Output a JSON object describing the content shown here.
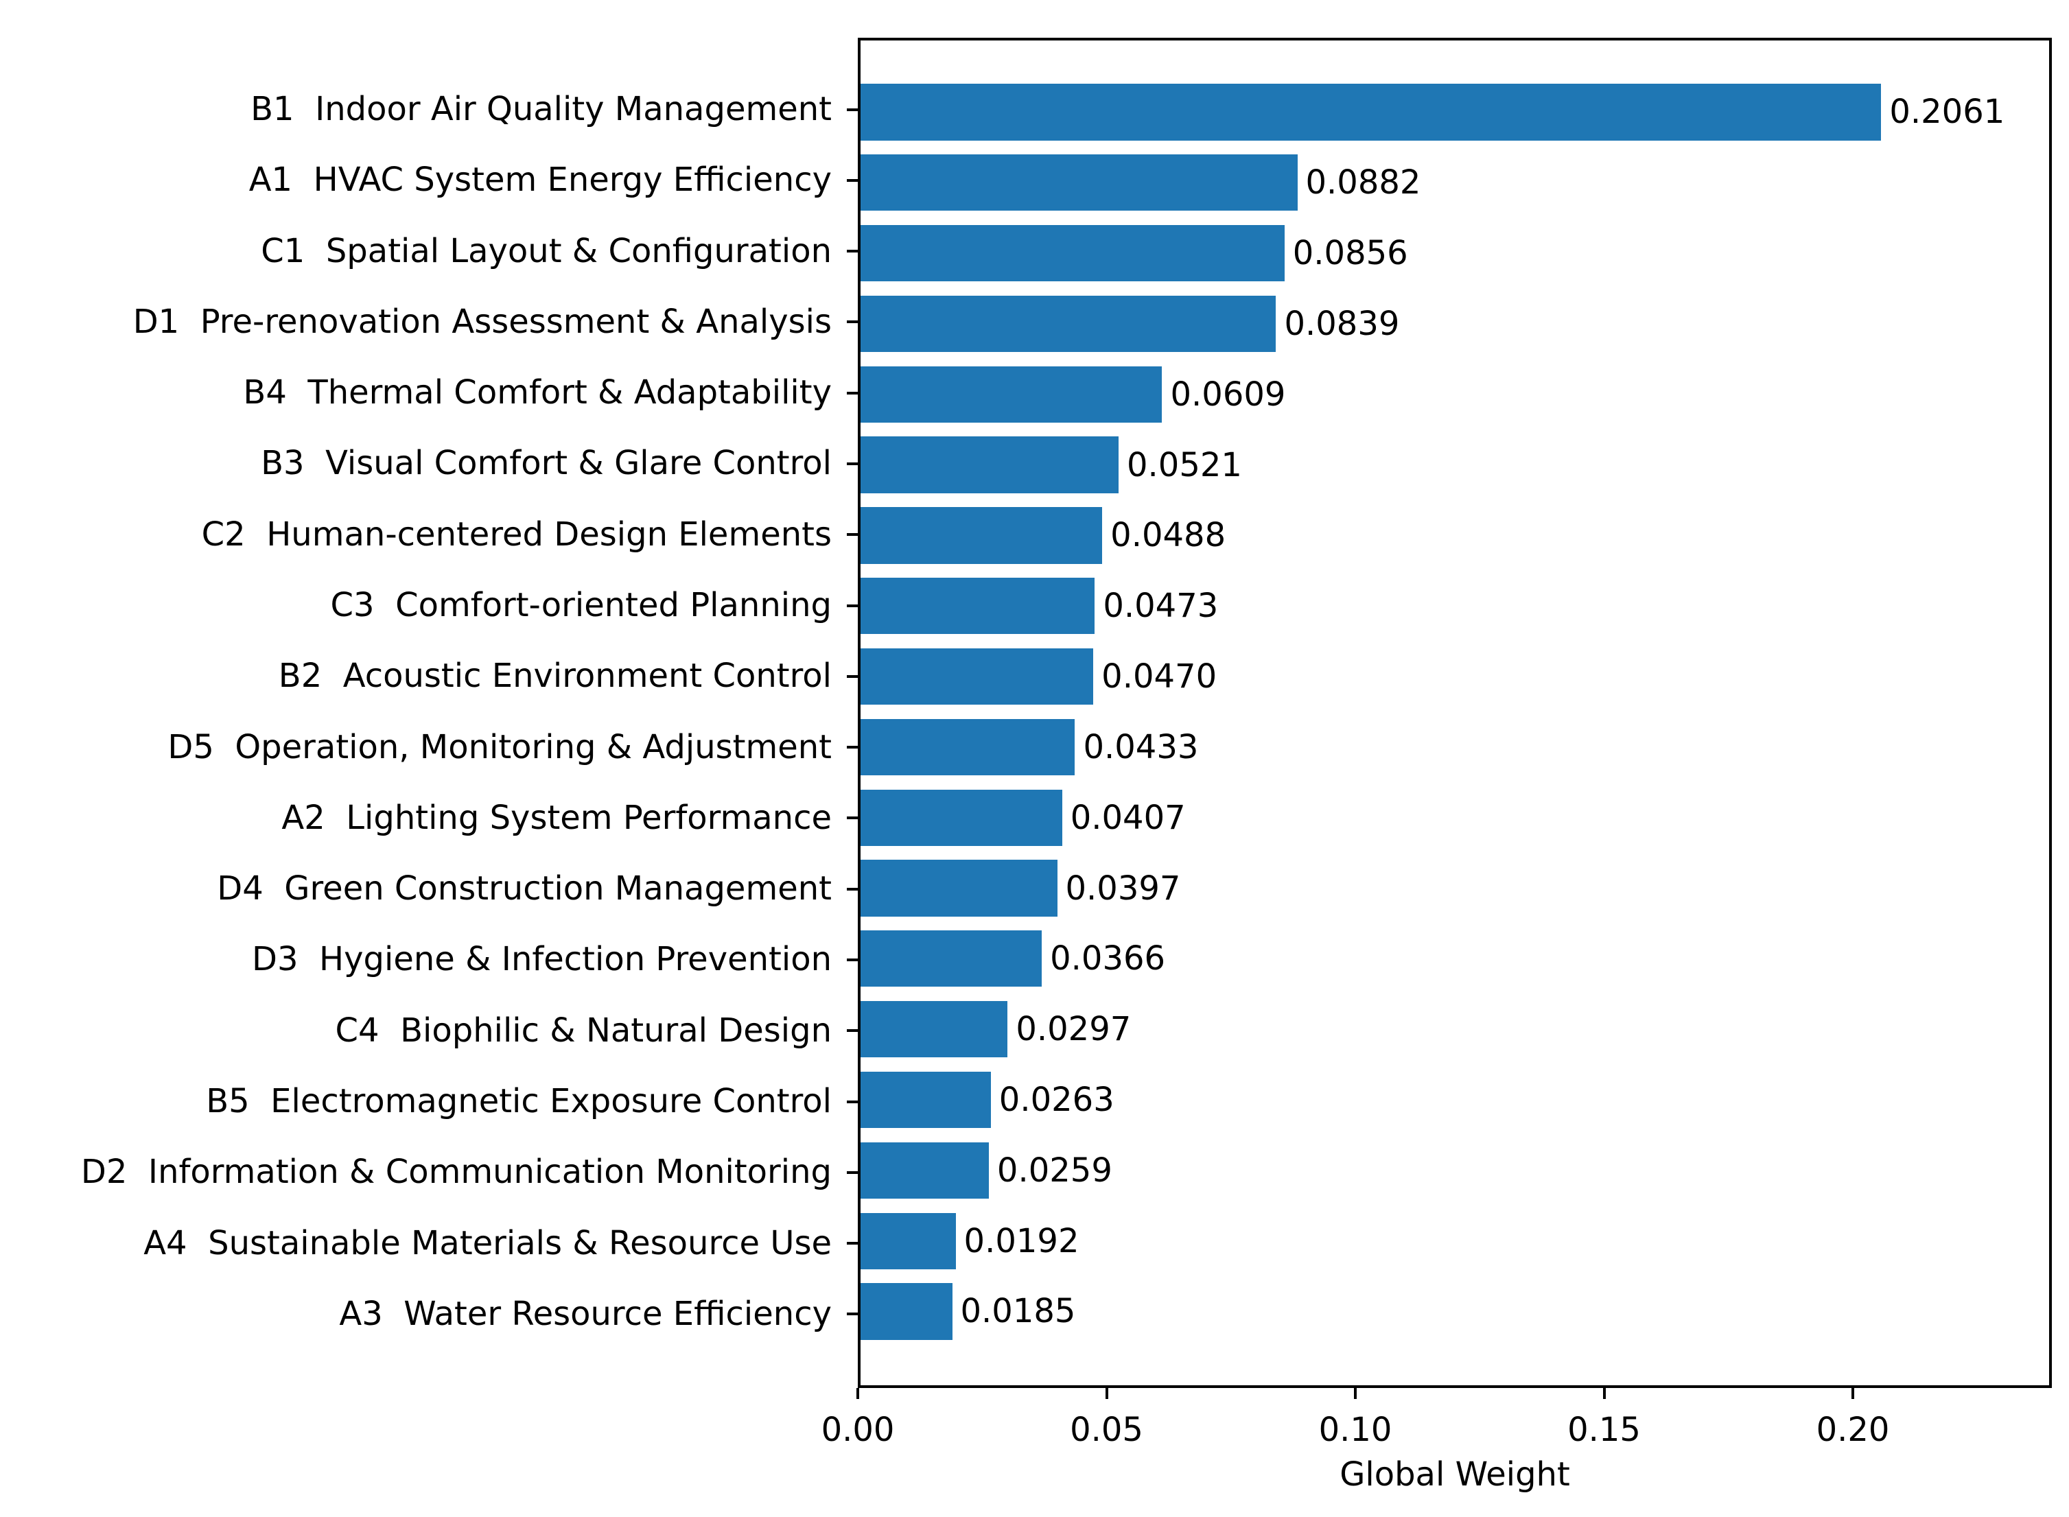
{
  "chart_data": {
    "type": "bar",
    "orientation": "horizontal",
    "title": "",
    "xlabel": "Global Weight",
    "ylabel": "",
    "xlim": [
      0,
      0.24
    ],
    "grid": false,
    "bar_color": "#1f77b4",
    "text_color": "#000000",
    "xticks": [
      {
        "value": 0.0,
        "label": "0.00"
      },
      {
        "value": 0.05,
        "label": "0.05"
      },
      {
        "value": 0.1,
        "label": "0.10"
      },
      {
        "value": 0.15,
        "label": "0.15"
      },
      {
        "value": 0.2,
        "label": "0.20"
      }
    ],
    "bars": [
      {
        "code": "B1",
        "label": "Indoor Air Quality Management",
        "value": 0.2061,
        "value_label": "0.2061"
      },
      {
        "code": "A1",
        "label": "HVAC System Energy Efficiency",
        "value": 0.0882,
        "value_label": "0.0882"
      },
      {
        "code": "C1",
        "label": "Spatial Layout & Configuration",
        "value": 0.0856,
        "value_label": "0.0856"
      },
      {
        "code": "D1",
        "label": "Pre-renovation Assessment & Analysis",
        "value": 0.0839,
        "value_label": "0.0839"
      },
      {
        "code": "B4",
        "label": "Thermal Comfort & Adaptability",
        "value": 0.0609,
        "value_label": "0.0609"
      },
      {
        "code": "B3",
        "label": "Visual Comfort & Glare Control",
        "value": 0.0521,
        "value_label": "0.0521"
      },
      {
        "code": "C2",
        "label": "Human-centered Design Elements",
        "value": 0.0488,
        "value_label": "0.0488"
      },
      {
        "code": "C3",
        "label": "Comfort-oriented Planning",
        "value": 0.0473,
        "value_label": "0.0473"
      },
      {
        "code": "B2",
        "label": "Acoustic Environment Control",
        "value": 0.047,
        "value_label": "0.0470"
      },
      {
        "code": "D5",
        "label": "Operation, Monitoring & Adjustment",
        "value": 0.0433,
        "value_label": "0.0433"
      },
      {
        "code": "A2",
        "label": "Lighting System Performance",
        "value": 0.0407,
        "value_label": "0.0407"
      },
      {
        "code": "D4",
        "label": "Green Construction Management",
        "value": 0.0397,
        "value_label": "0.0397"
      },
      {
        "code": "D3",
        "label": "Hygiene & Infection Prevention",
        "value": 0.0366,
        "value_label": "0.0366"
      },
      {
        "code": "C4",
        "label": "Biophilic & Natural Design",
        "value": 0.0297,
        "value_label": "0.0297"
      },
      {
        "code": "B5",
        "label": "Electromagnetic Exposure Control",
        "value": 0.0263,
        "value_label": "0.0263"
      },
      {
        "code": "D2",
        "label": "Information & Communication Monitoring",
        "value": 0.0259,
        "value_label": "0.0259"
      },
      {
        "code": "A4",
        "label": "Sustainable Materials & Resource Use",
        "value": 0.0192,
        "value_label": "0.0192"
      },
      {
        "code": "A3",
        "label": "Water Resource Efficiency",
        "value": 0.0185,
        "value_label": "0.0185"
      }
    ]
  }
}
